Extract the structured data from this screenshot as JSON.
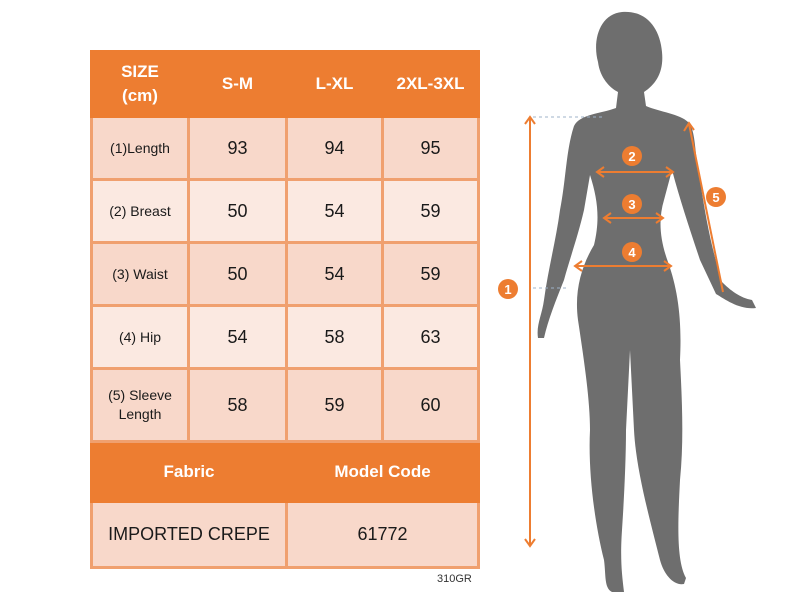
{
  "table": {
    "header": [
      "SIZE",
      "(cm)"
    ],
    "sizes": [
      "S-M",
      "L-XL",
      "2XL-3XL"
    ],
    "rows": [
      {
        "label": "(1)Length",
        "label2": "",
        "values": [
          "93",
          "94",
          "95"
        ]
      },
      {
        "label": "(2) Breast",
        "label2": "",
        "values": [
          "50",
          "54",
          "59"
        ]
      },
      {
        "label": "(3) Waist",
        "label2": "",
        "values": [
          "50",
          "54",
          "59"
        ]
      },
      {
        "label": "(4) Hip",
        "label2": "",
        "values": [
          "54",
          "58",
          "63"
        ]
      },
      {
        "label": "(5) Sleeve",
        "label2": "Length",
        "values": [
          "58",
          "59",
          "60"
        ]
      }
    ],
    "fabric_label": "Fabric",
    "model_code_label": "Model Code",
    "fabric_value": "IMPORTED CREPE",
    "model_code_value": "61772"
  },
  "product_code": "310GR",
  "diagram": {
    "markers": [
      "1",
      "2",
      "3",
      "4",
      "5"
    ],
    "accent_color": "#ED7D31",
    "silhouette_color": "#6E6E6E"
  }
}
